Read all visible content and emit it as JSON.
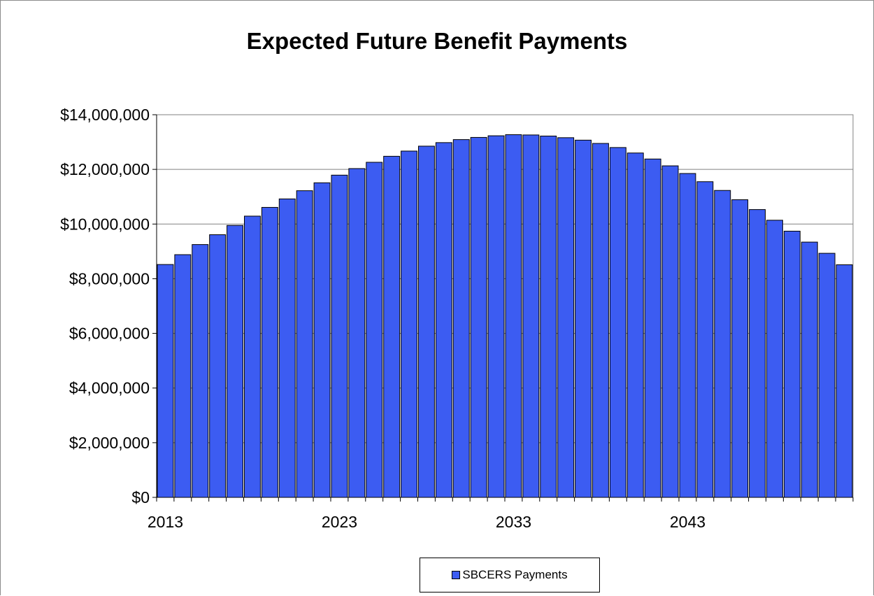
{
  "chart_data": {
    "type": "bar",
    "title": "Expected Future Benefit Payments",
    "x": [
      2013,
      2014,
      2015,
      2016,
      2017,
      2018,
      2019,
      2020,
      2021,
      2022,
      2023,
      2024,
      2025,
      2026,
      2027,
      2028,
      2029,
      2030,
      2031,
      2032,
      2033,
      2034,
      2035,
      2036,
      2037,
      2038,
      2039,
      2040,
      2041,
      2042,
      2043,
      2044,
      2045,
      2046,
      2047,
      2048,
      2049,
      2050,
      2051,
      2052
    ],
    "series": [
      {
        "name": "SBCERS Payments",
        "values": [
          8520000,
          8880000,
          9250000,
          9610000,
          9950000,
          10290000,
          10610000,
          10920000,
          11220000,
          11510000,
          11790000,
          12030000,
          12260000,
          12480000,
          12670000,
          12850000,
          12980000,
          13090000,
          13170000,
          13230000,
          13270000,
          13260000,
          13220000,
          13160000,
          13070000,
          12950000,
          12800000,
          12600000,
          12380000,
          12130000,
          11850000,
          11550000,
          11230000,
          10890000,
          10530000,
          10140000,
          9740000,
          9340000,
          8930000,
          8510000
        ]
      }
    ],
    "x_tick_labels": [
      "2013",
      "2023",
      "2033",
      "2043"
    ],
    "y_tick_labels": [
      "$0",
      "$2,000,000",
      "$4,000,000",
      "$6,000,000",
      "$8,000,000",
      "$10,000,000",
      "$12,000,000",
      "$14,000,000"
    ],
    "ylim": [
      0,
      14000000
    ],
    "grid": true,
    "legend_position": "bottom",
    "colors": {
      "bar": "#3c5cf2",
      "bar_edge": "#000000",
      "grid": "#808080",
      "axis": "#808080"
    }
  }
}
